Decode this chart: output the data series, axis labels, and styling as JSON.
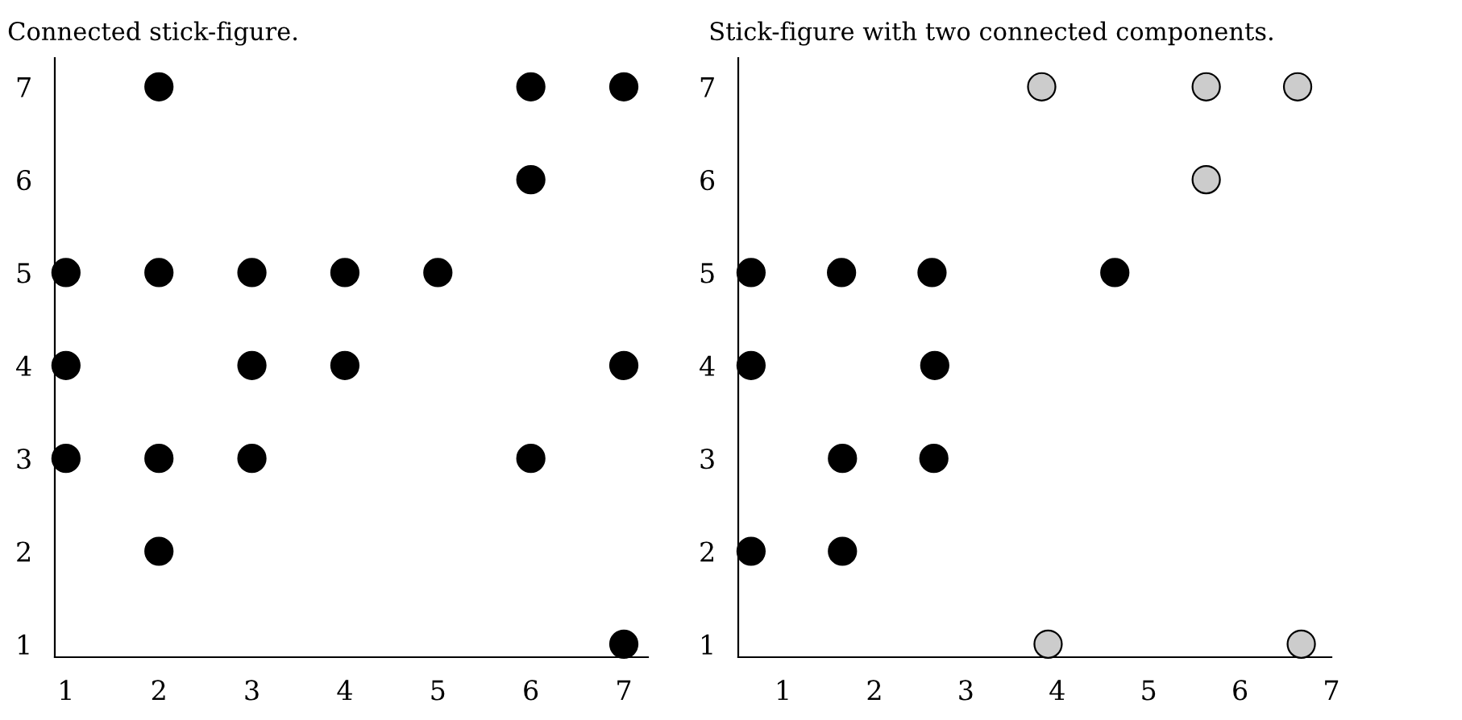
{
  "chart_data": [
    {
      "type": "scatter",
      "title": "Connected stick-figure.",
      "xlim": [
        0.88,
        7.26
      ],
      "ylim": [
        0.86,
        7.31
      ],
      "xticks": [
        1,
        2,
        3,
        4,
        5,
        6,
        7
      ],
      "yticks": [
        1,
        2,
        3,
        4,
        5,
        6,
        7
      ],
      "marker": "circle",
      "grid": false,
      "legend": false,
      "series": [
        {
          "color": "#000000",
          "x": [
            2,
            6,
            7,
            6,
            1,
            2,
            3,
            4,
            5,
            1,
            3,
            4,
            7,
            1,
            2,
            3,
            6,
            2,
            7
          ],
          "values": [
            7,
            7,
            7,
            6,
            5,
            5,
            5,
            5,
            5,
            4,
            4,
            4,
            4,
            3,
            3,
            3,
            3,
            2,
            1
          ]
        }
      ]
    },
    {
      "type": "scatter",
      "title": "Stick-figure with two connected components.",
      "xlim": [
        0.51,
        7.0
      ],
      "ylim": [
        0.86,
        7.31
      ],
      "xticks": [
        1,
        2,
        3,
        4,
        5,
        6,
        7
      ],
      "yticks": [
        1,
        2,
        3,
        4,
        5,
        6,
        7
      ],
      "marker": "circle",
      "grid": false,
      "legend": false,
      "series": [
        {
          "color": "#000000",
          "x": [
            0.65,
            1.64,
            2.63,
            4.63,
            0.65,
            2.66,
            1.65,
            2.65,
            0.65,
            1.65
          ],
          "values": [
            5,
            5,
            5,
            5,
            4,
            4,
            3,
            3,
            2,
            2
          ]
        },
        {
          "color": "#cccccc",
          "x": [
            3.83,
            5.63,
            6.63,
            5.63,
            3.9,
            6.67
          ],
          "values": [
            7,
            7,
            7,
            6,
            1,
            1
          ]
        }
      ]
    }
  ]
}
